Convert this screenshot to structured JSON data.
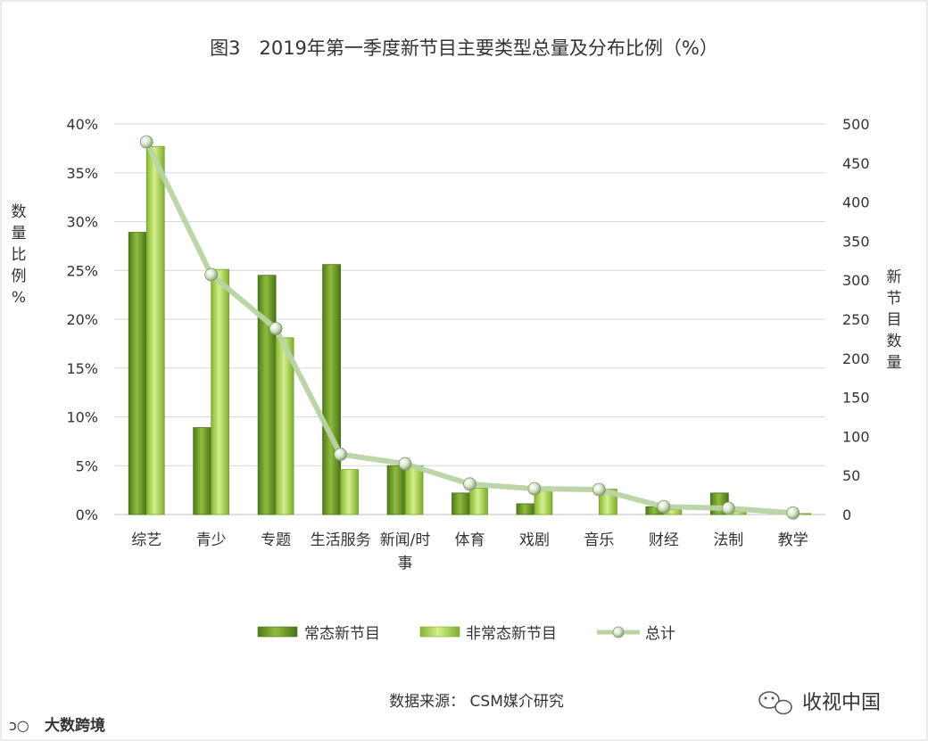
{
  "chart_data": {
    "type": "bar",
    "title": "图3　2019年第一季度新节目主要类型总量及分布比例（%）",
    "ylabel": "数量比例%",
    "y2label": "新节目数量",
    "categories": [
      "综艺",
      "青少",
      "专题",
      "生活服务",
      "新闻/时事",
      "体育",
      "戏剧",
      "音乐",
      "财经",
      "法制",
      "教学"
    ],
    "ylim": [
      0,
      40
    ],
    "y2lim": [
      0,
      500
    ],
    "yticks": [
      "0%",
      "5%",
      "10%",
      "15%",
      "20%",
      "25%",
      "30%",
      "35%",
      "40%"
    ],
    "y2ticks": [
      "0",
      "50",
      "100",
      "150",
      "200",
      "250",
      "300",
      "350",
      "400",
      "450",
      "500"
    ],
    "grid": true,
    "legend_position": "bottom",
    "series": [
      {
        "name": "常态新节目",
        "kind": "bar",
        "axis": "left",
        "color": "#6f9a2e",
        "values": [
          28.9,
          8.9,
          24.5,
          25.6,
          5.0,
          2.2,
          1.1,
          0.0,
          0.8,
          2.2,
          0.0
        ]
      },
      {
        "name": "非常态新节目",
        "kind": "bar",
        "axis": "left",
        "color": "#a6cc4e",
        "values": [
          37.7,
          25.1,
          18.1,
          4.6,
          5.0,
          2.7,
          2.4,
          2.6,
          0.5,
          0.3,
          0.1
        ]
      },
      {
        "name": "总计",
        "kind": "line",
        "axis": "right",
        "color": "#b8d4a4",
        "values": [
          477,
          307,
          238,
          77,
          65,
          39,
          33,
          32,
          10,
          8,
          2
        ]
      }
    ]
  },
  "footer": {
    "source": "数据来源：  CSM媒介研究",
    "watermark_left": "大数跨境",
    "watermark_right": "收视中国"
  }
}
